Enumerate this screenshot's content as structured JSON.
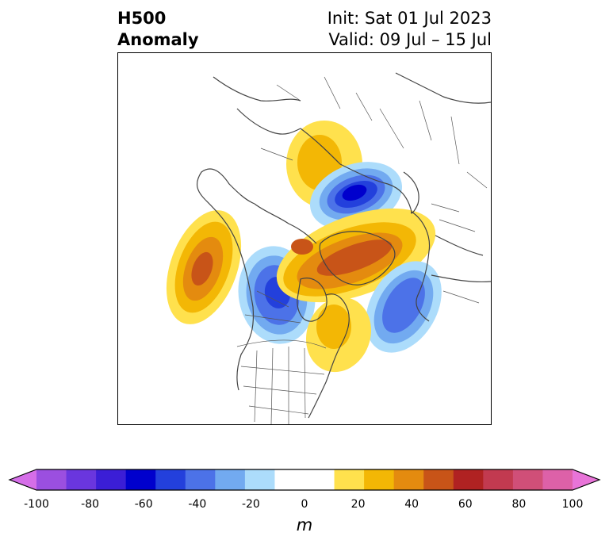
{
  "title": {
    "left_line1": "H500",
    "left_line2": "Anomaly",
    "init": "Init: Sat 01 Jul 2023",
    "valid": "Valid: 09 Jul – 15 Jul"
  },
  "colorbar": {
    "units": "m",
    "min": -100,
    "max": 100,
    "step": 10,
    "extend": "both",
    "tick_labels": [
      "-100",
      "-80",
      "-60",
      "-40",
      "-20",
      "0",
      "20",
      "40",
      "60",
      "80",
      "100"
    ],
    "colors": [
      "#d56ee8",
      "#9b4fe0",
      "#6a36de",
      "#3b1ed6",
      "#0000cd",
      "#2340dc",
      "#4c72e8",
      "#72aaf0",
      "#acdcfb",
      "#ffffff",
      "#ffffff",
      "#ffe14d",
      "#f3b705",
      "#e48b0f",
      "#c85418",
      "#b02222",
      "#c23a50",
      "#d04f78",
      "#dd61a8",
      "#e874d8"
    ]
  }
}
